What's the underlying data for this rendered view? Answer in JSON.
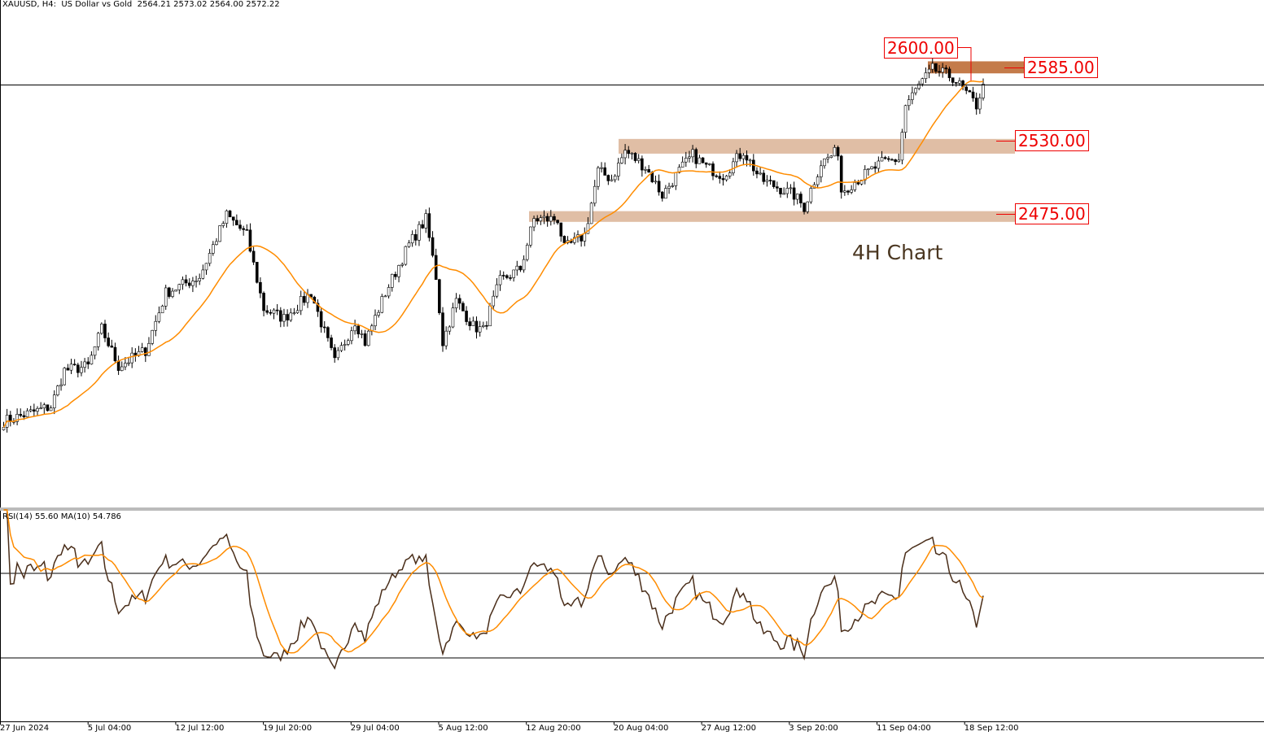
{
  "header": {
    "symbol_text": "XAUUSD, H4:  US Dollar vs Gold  2564.21 2573.02 2564.00 2572.22"
  },
  "rsi_header": {
    "text": "RSI(14) 55.60 MA(10) 54.786"
  },
  "annotation": {
    "text": "4H Chart"
  },
  "levels": [
    {
      "label": "2600.00",
      "price": 2600
    },
    {
      "label": "2585.00",
      "price": 2585
    },
    {
      "label": "2530.00",
      "price": 2530
    },
    {
      "label": "2475.00",
      "price": 2475
    }
  ],
  "colors": {
    "zone_dark": "#c47b4a",
    "zone_light": "#e0bea5",
    "ma": "#ff8c00",
    "rsi": "#4a2e1a",
    "label": "#ee0000"
  },
  "chart_data": {
    "type": "candlestick",
    "title": "XAUUSD, H4: US Dollar vs Gold",
    "ohlc_last": {
      "open": 2564.21,
      "high": 2573.02,
      "low": 2564.0,
      "close": 2572.22
    },
    "current_price": 2572.22,
    "ylim": [
      2240,
      2615
    ],
    "x_tick_labels": [
      "27 Jun 2024",
      "5 Jul 04:00",
      "12 Jul 12:00",
      "19 Jul 20:00",
      "29 Jul 04:00",
      "5 Aug 12:00",
      "12 Aug 20:00",
      "20 Aug 04:00",
      "27 Aug 12:00",
      "3 Sep 20:00",
      "11 Sep 04:00",
      "18 Sep 12:00"
    ],
    "approx_close_keypoints": [
      [
        0,
        2320
      ],
      [
        14,
        2331
      ],
      [
        18,
        2358
      ],
      [
        25,
        2361
      ],
      [
        29,
        2389
      ],
      [
        34,
        2361
      ],
      [
        42,
        2373
      ],
      [
        48,
        2416
      ],
      [
        58,
        2428
      ],
      [
        66,
        2474
      ],
      [
        72,
        2459
      ],
      [
        77,
        2404
      ],
      [
        83,
        2397
      ],
      [
        91,
        2416
      ],
      [
        98,
        2364
      ],
      [
        104,
        2395
      ],
      [
        107,
        2379
      ],
      [
        113,
        2416
      ],
      [
        120,
        2452
      ],
      [
        125,
        2471
      ],
      [
        128,
        2428
      ],
      [
        130,
        2379
      ],
      [
        134,
        2410
      ],
      [
        139,
        2391
      ],
      [
        142,
        2388
      ],
      [
        147,
        2425
      ],
      [
        153,
        2434
      ],
      [
        157,
        2471
      ],
      [
        164,
        2471
      ],
      [
        166,
        2449
      ],
      [
        172,
        2459
      ],
      [
        176,
        2507
      ],
      [
        180,
        2501
      ],
      [
        184,
        2522
      ],
      [
        190,
        2510
      ],
      [
        195,
        2489
      ],
      [
        200,
        2507
      ],
      [
        204,
        2519
      ],
      [
        208,
        2510
      ],
      [
        213,
        2504
      ],
      [
        219,
        2522
      ],
      [
        224,
        2501
      ],
      [
        234,
        2489
      ],
      [
        237,
        2480
      ],
      [
        242,
        2513
      ],
      [
        247,
        2522
      ],
      [
        248,
        2492
      ],
      [
        253,
        2501
      ],
      [
        260,
        2513
      ],
      [
        265,
        2516
      ],
      [
        267,
        2556
      ],
      [
        271,
        2571
      ],
      [
        275,
        2583
      ],
      [
        281,
        2577
      ],
      [
        284,
        2568
      ],
      [
        288,
        2556
      ],
      [
        290,
        2572
      ]
    ],
    "moving_average": {
      "period": 20,
      "type": "SMA"
    },
    "zones": [
      {
        "from": 2580,
        "to": 2589,
        "shade": "dark"
      },
      {
        "from": 2520,
        "to": 2531,
        "shade": "light"
      },
      {
        "from": 2469,
        "to": 2477,
        "shade": "light"
      }
    ],
    "rsi": {
      "period": 14,
      "value": 55.6,
      "ma_period": 10,
      "ma_value": 54.786,
      "levels": [
        70,
        30
      ],
      "ylim": [
        0,
        100
      ]
    }
  }
}
